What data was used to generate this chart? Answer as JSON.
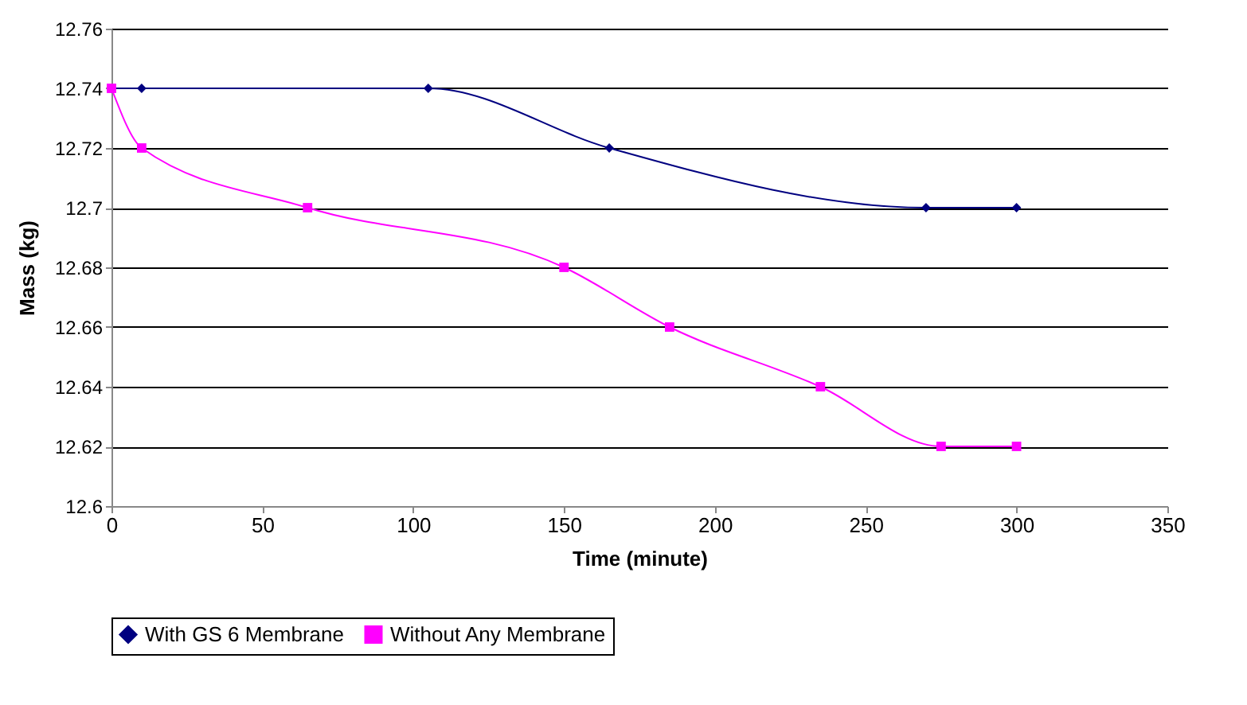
{
  "chart_data": {
    "type": "line",
    "xlabel": "Time (minute)",
    "ylabel": "Mass (kg)",
    "xlim": [
      0,
      350
    ],
    "xticks": [
      0,
      50,
      100,
      150,
      200,
      250,
      300,
      350
    ],
    "ylim": [
      12.6,
      12.76
    ],
    "yticks": [
      12.6,
      12.62,
      12.64,
      12.66,
      12.68,
      12.7,
      12.72,
      12.74,
      12.76
    ],
    "grid": "y",
    "legend": "bottom",
    "series": [
      {
        "name": "With GS 6 Membrane",
        "color": "#000080",
        "marker": "diamond",
        "x": [
          0,
          10,
          105,
          165,
          270,
          300
        ],
        "values": [
          12.74,
          12.74,
          12.74,
          12.72,
          12.7,
          12.7
        ]
      },
      {
        "name": "Without Any Membrane",
        "color": "#ff00ff",
        "marker": "square",
        "x": [
          0,
          10,
          65,
          150,
          185,
          235,
          275,
          300
        ],
        "values": [
          12.74,
          12.72,
          12.7,
          12.68,
          12.66,
          12.64,
          12.62,
          12.62
        ]
      }
    ]
  }
}
